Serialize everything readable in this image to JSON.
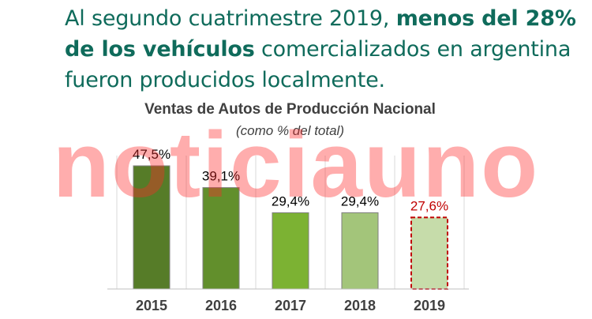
{
  "headline": {
    "part1": "Al segundo cuatrimestre 2019, ",
    "bold": "menos del 28% de los vehículos",
    "part2": " comercializados en argentina fueron producidos localmente."
  },
  "watermark": "noticiauno",
  "chart_data": {
    "type": "bar",
    "title": "Ventas de Autos de Producción Nacional",
    "subtitle": "(como % del total)",
    "categories": [
      "2015",
      "2016",
      "2017",
      "2018",
      "2019"
    ],
    "values": [
      47.5,
      39.1,
      29.4,
      29.4,
      27.6
    ],
    "labels": [
      "47,5%",
      "39,1%",
      "29,4%",
      "29,4%",
      "27,6%"
    ],
    "colors": [
      "#567c28",
      "#628f2c",
      "#7cb233",
      "#a3c57a",
      "#c6dcaa"
    ],
    "highlight_index": 4,
    "highlight_color": "#c00000",
    "grid": true,
    "ylim": [
      0,
      60
    ]
  }
}
